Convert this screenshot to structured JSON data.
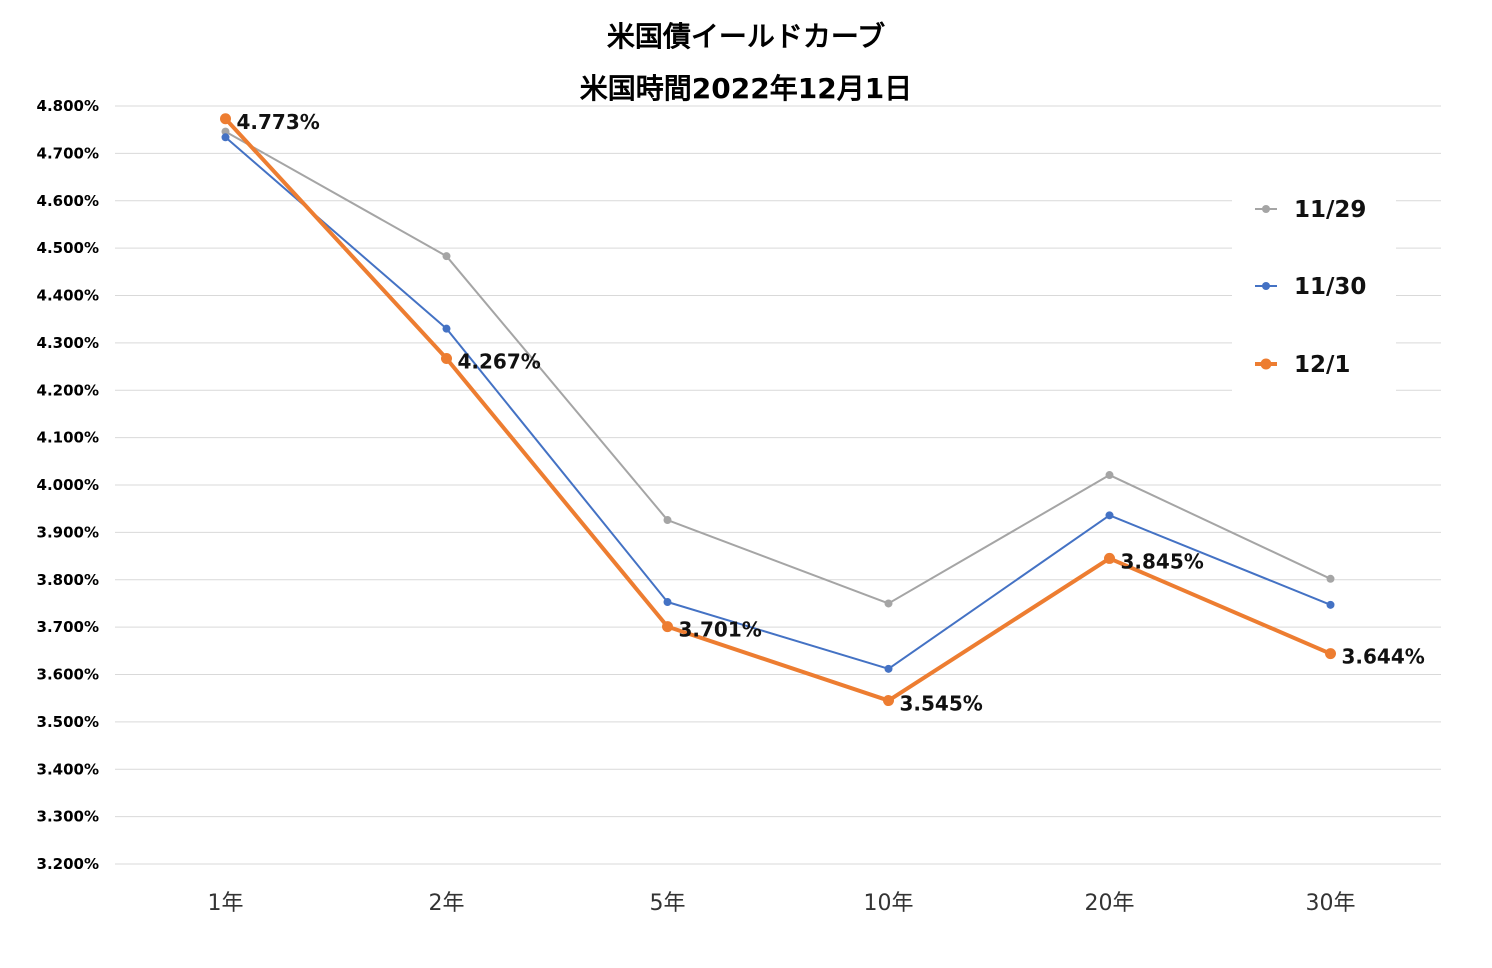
{
  "chart_data": {
    "type": "line",
    "title": [
      "米国債イールドカーブ",
      "米国時間2022年12月1日"
    ],
    "xlabel": "",
    "ylabel": "",
    "categories": [
      "1年",
      "2年",
      "5年",
      "10年",
      "20年",
      "30年"
    ],
    "ylim": [
      3.2,
      4.8
    ],
    "ytick_step": 0.1,
    "ytick_labels": [
      "3.200%",
      "3.300%",
      "3.400%",
      "3.500%",
      "3.600%",
      "3.700%",
      "3.800%",
      "3.900%",
      "4.000%",
      "4.100%",
      "4.200%",
      "4.300%",
      "4.400%",
      "4.500%",
      "4.600%",
      "4.700%",
      "4.800%"
    ],
    "grid": true,
    "legend_position": "right",
    "series": [
      {
        "name": "11/29",
        "color": "#a5a5a5",
        "emphasis": false,
        "values": [
          4.746,
          4.483,
          3.926,
          3.75,
          4.021,
          3.802
        ]
      },
      {
        "name": "11/30",
        "color": "#4472c4",
        "emphasis": false,
        "values": [
          4.734,
          4.33,
          3.753,
          3.612,
          3.936,
          3.747
        ]
      },
      {
        "name": "12/1",
        "color": "#ed7d31",
        "emphasis": true,
        "values": [
          4.773,
          4.267,
          3.701,
          3.545,
          3.845,
          3.644
        ],
        "data_labels": [
          "4.773%",
          "4.267%",
          "3.701%",
          "3.545%",
          "3.845%",
          "3.644%"
        ]
      }
    ]
  }
}
